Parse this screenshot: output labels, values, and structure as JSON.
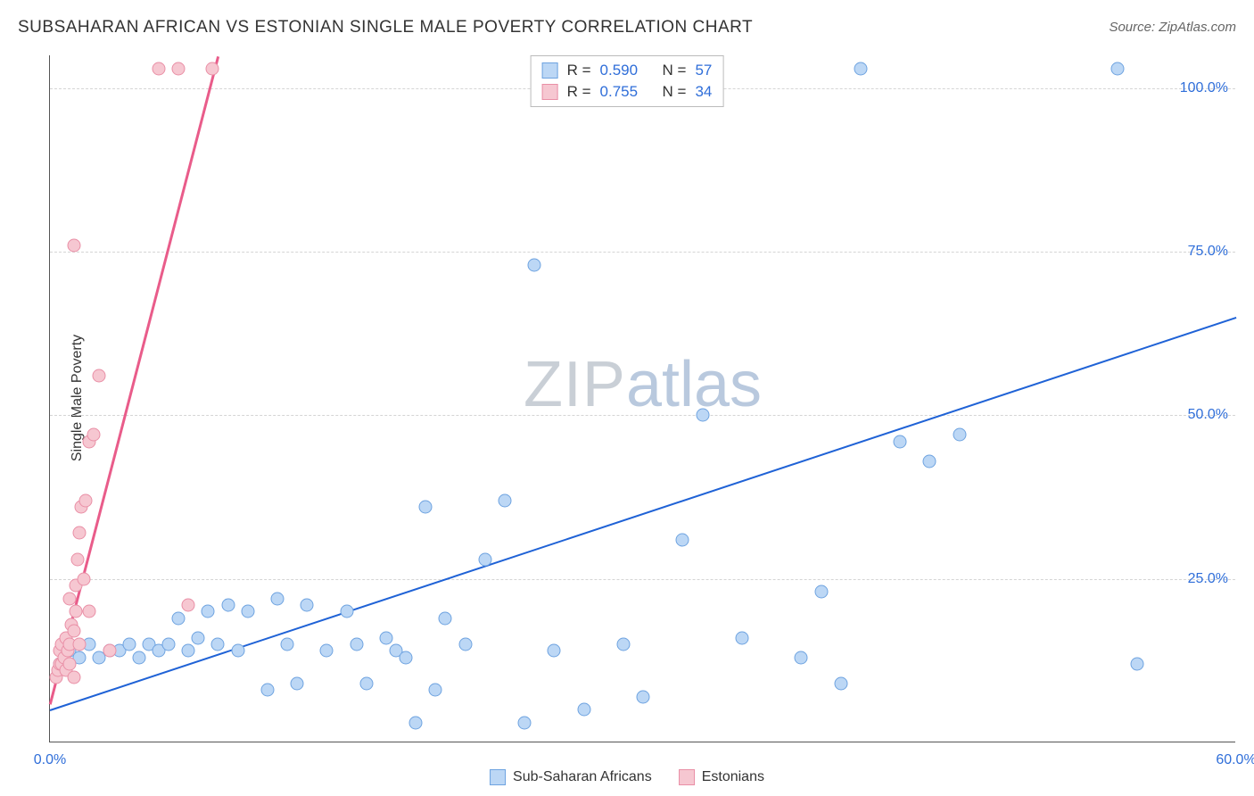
{
  "title": "SUBSAHARAN AFRICAN VS ESTONIAN SINGLE MALE POVERTY CORRELATION CHART",
  "source": "Source: ZipAtlas.com",
  "y_axis_title": "Single Male Poverty",
  "watermark": {
    "part1": "ZIP",
    "part2": "atlas",
    "color1": "#c9cfd6",
    "color2": "#b9c9de"
  },
  "chart": {
    "type": "scatter",
    "xlim": [
      0,
      60
    ],
    "ylim": [
      0,
      105
    ],
    "background_color": "#ffffff",
    "grid_color": "#d5d5d5",
    "axis_color": "#555555",
    "xticks": [
      {
        "value": 0,
        "label": "0.0%",
        "color": "#2f6ed9"
      },
      {
        "value": 60,
        "label": "60.0%",
        "color": "#2f6ed9"
      }
    ],
    "yticks": [
      {
        "value": 25,
        "label": "25.0%",
        "color": "#2f6ed9"
      },
      {
        "value": 50,
        "label": "50.0%",
        "color": "#2f6ed9"
      },
      {
        "value": 75,
        "label": "75.0%",
        "color": "#2f6ed9"
      },
      {
        "value": 100,
        "label": "100.0%",
        "color": "#2f6ed9"
      }
    ],
    "series": [
      {
        "name": "Sub-Saharan Africans",
        "marker_fill": "#bcd7f5",
        "marker_stroke": "#6ea3e0",
        "marker_size": 15,
        "trend_color": "#1f62d6",
        "trend_width": 2,
        "trend": {
          "x1": 0,
          "y1": 5,
          "x2": 60,
          "y2": 65
        },
        "R": "0.590",
        "N": "57",
        "points": [
          [
            0.5,
            12
          ],
          [
            1,
            14
          ],
          [
            1.5,
            13
          ],
          [
            2,
            15
          ],
          [
            2.5,
            13
          ],
          [
            3,
            14
          ],
          [
            3.5,
            14
          ],
          [
            4,
            15
          ],
          [
            4.5,
            13
          ],
          [
            5,
            15
          ],
          [
            5.5,
            14
          ],
          [
            6,
            15
          ],
          [
            6.5,
            19
          ],
          [
            7,
            14
          ],
          [
            7.5,
            16
          ],
          [
            8,
            20
          ],
          [
            8.5,
            15
          ],
          [
            9,
            21
          ],
          [
            9.5,
            14
          ],
          [
            10,
            20
          ],
          [
            11,
            8
          ],
          [
            11.5,
            22
          ],
          [
            12,
            15
          ],
          [
            12.5,
            9
          ],
          [
            13,
            21
          ],
          [
            14,
            14
          ],
          [
            15,
            20
          ],
          [
            15.5,
            15
          ],
          [
            16,
            9
          ],
          [
            17,
            16
          ],
          [
            17.5,
            14
          ],
          [
            18,
            13
          ],
          [
            18.5,
            3
          ],
          [
            19,
            36
          ],
          [
            19.5,
            8
          ],
          [
            20,
            19
          ],
          [
            21,
            15
          ],
          [
            22,
            28
          ],
          [
            23,
            37
          ],
          [
            24,
            3
          ],
          [
            24.5,
            73
          ],
          [
            25.5,
            14
          ],
          [
            27,
            5
          ],
          [
            29,
            15
          ],
          [
            30,
            7
          ],
          [
            32,
            31
          ],
          [
            33,
            50
          ],
          [
            35,
            16
          ],
          [
            39,
            23
          ],
          [
            40,
            9
          ],
          [
            41,
            103
          ],
          [
            43,
            46
          ],
          [
            44.5,
            43
          ],
          [
            46,
            47
          ],
          [
            54,
            103
          ],
          [
            55,
            12
          ],
          [
            38,
            13
          ]
        ]
      },
      {
        "name": "Estonians",
        "marker_fill": "#f6c7d1",
        "marker_stroke": "#e98fa6",
        "marker_size": 15,
        "trend_color": "#e95c8a",
        "trend_width": 2.5,
        "trend": {
          "x1": 0,
          "y1": 6,
          "x2": 8.5,
          "y2": 105
        },
        "R": "0.755",
        "N": "34",
        "points": [
          [
            0.3,
            10
          ],
          [
            0.4,
            11
          ],
          [
            0.5,
            12
          ],
          [
            0.5,
            14
          ],
          [
            0.6,
            15
          ],
          [
            0.6,
            12
          ],
          [
            0.7,
            13
          ],
          [
            0.8,
            11
          ],
          [
            0.8,
            16
          ],
          [
            0.9,
            14
          ],
          [
            1,
            12
          ],
          [
            1,
            15
          ],
          [
            1,
            22
          ],
          [
            1.1,
            18
          ],
          [
            1.2,
            10
          ],
          [
            1.2,
            17
          ],
          [
            1.3,
            20
          ],
          [
            1.3,
            24
          ],
          [
            1.4,
            28
          ],
          [
            1.5,
            32
          ],
          [
            1.5,
            15
          ],
          [
            1.6,
            36
          ],
          [
            1.7,
            25
          ],
          [
            1.8,
            37
          ],
          [
            2,
            20
          ],
          [
            2,
            46
          ],
          [
            2.2,
            47
          ],
          [
            2.5,
            56
          ],
          [
            1.2,
            76
          ],
          [
            3,
            14
          ],
          [
            5.5,
            103
          ],
          [
            6.5,
            103
          ],
          [
            7,
            21
          ],
          [
            8.2,
            103
          ]
        ]
      }
    ]
  },
  "legend_top": {
    "R_label": "R =",
    "N_label": "N =",
    "label_color": "#333333",
    "value_color": "#2f6ed9"
  },
  "legend_bottom": {
    "items": [
      {
        "label": "Sub-Saharan Africans",
        "fill": "#bcd7f5",
        "stroke": "#6ea3e0"
      },
      {
        "label": "Estonians",
        "fill": "#f6c7d1",
        "stroke": "#e98fa6"
      }
    ]
  }
}
